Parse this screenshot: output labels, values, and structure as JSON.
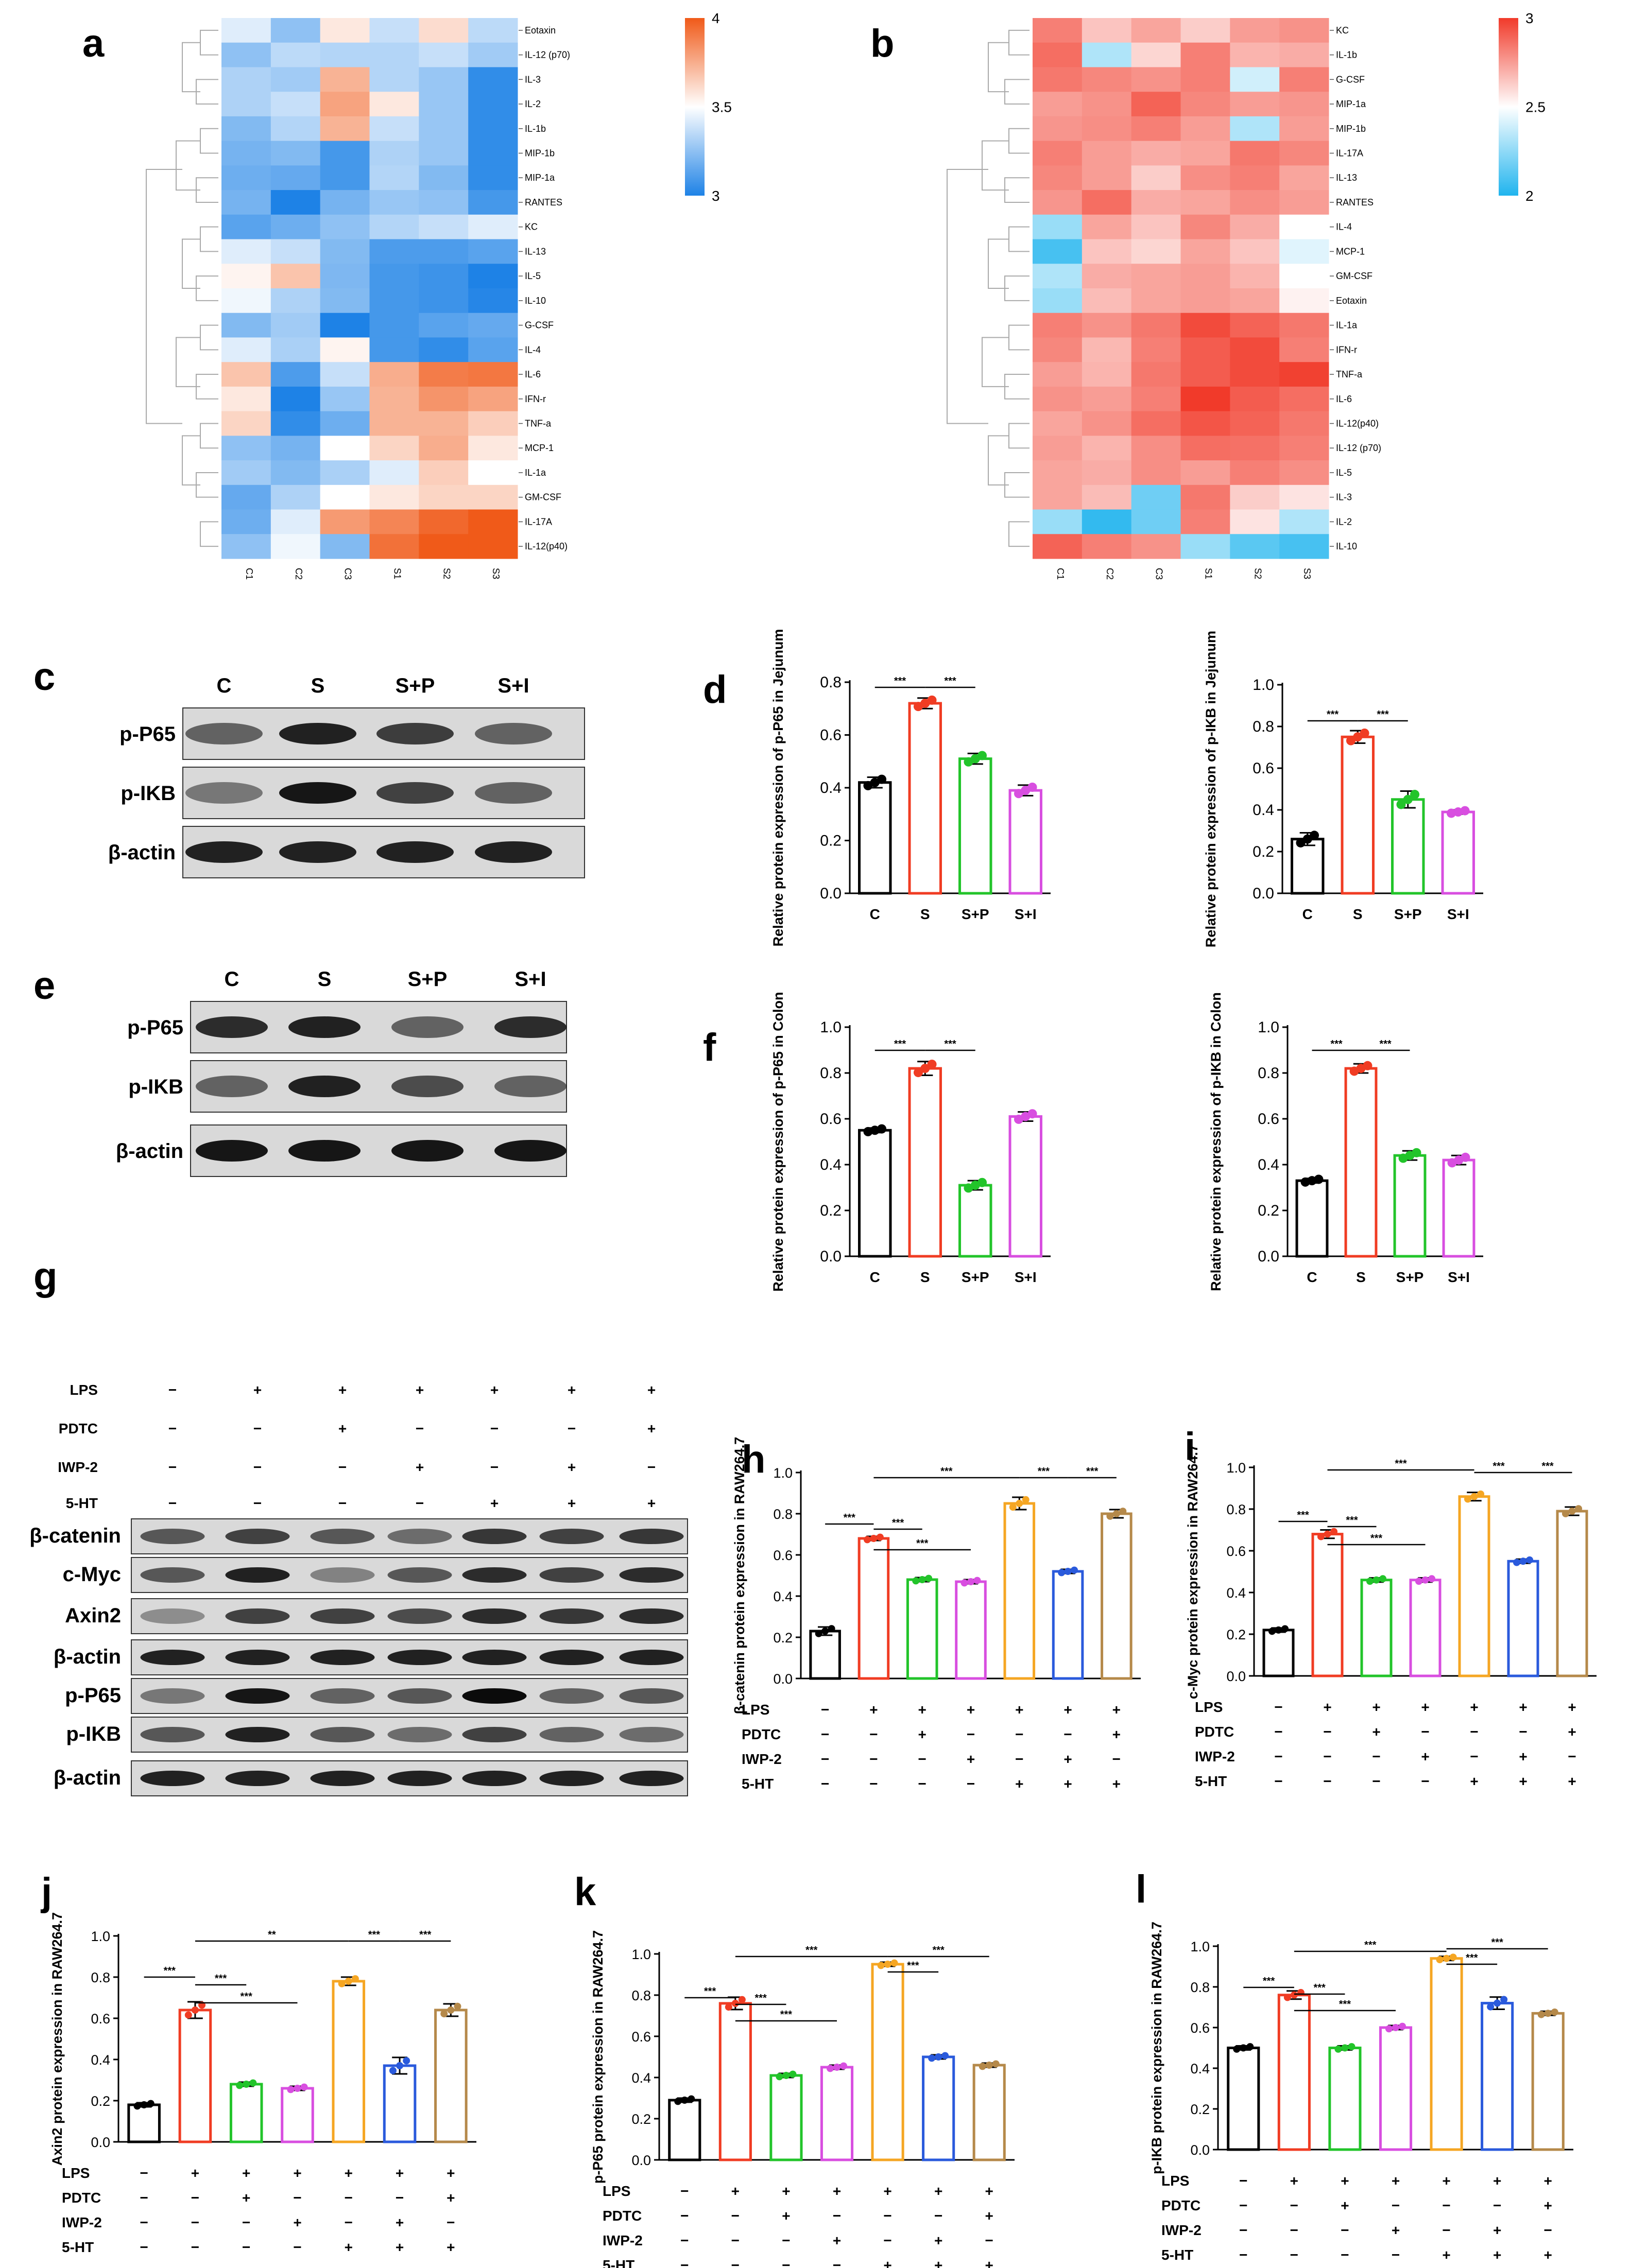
{
  "panel_letters": {
    "a": "a",
    "b": "b",
    "c": "c",
    "d": "d",
    "e": "e",
    "f": "f",
    "g": "g",
    "h": "h",
    "i": "i",
    "j": "j",
    "k": "k",
    "l": "l"
  },
  "chart_data": [
    {
      "id": "a",
      "type": "heatmap",
      "rows": [
        "Eotaxin",
        "IL-12 (p70)",
        "IL-3",
        "IL-2",
        "IL-1b",
        "MIP-1b",
        "MIP-1a",
        "RANTES",
        "KC",
        "IL-13",
        "IL-5",
        "IL-10",
        "G-CSF",
        "IL-4",
        "IL-6",
        "IFN-r",
        "TNF-a",
        "MCP-1",
        "IL-1a",
        "GM-CSF",
        "IL-17A",
        "IL-12(p40)"
      ],
      "cols": [
        "C1",
        "C2",
        "C3",
        "S1",
        "S2",
        "S3"
      ],
      "values": [
        [
          3.45,
          3.28,
          3.55,
          3.4,
          3.58,
          3.38
        ],
        [
          3.28,
          3.38,
          3.36,
          3.36,
          3.4,
          3.32
        ],
        [
          3.35,
          3.32,
          3.7,
          3.36,
          3.3,
          3.05
        ],
        [
          3.35,
          3.4,
          3.75,
          3.55,
          3.3,
          3.05
        ],
        [
          3.25,
          3.36,
          3.7,
          3.4,
          3.3,
          3.05
        ],
        [
          3.22,
          3.25,
          3.1,
          3.35,
          3.3,
          3.05
        ],
        [
          3.2,
          3.18,
          3.1,
          3.36,
          3.25,
          3.05
        ],
        [
          3.22,
          3.0,
          3.22,
          3.3,
          3.28,
          3.1
        ],
        [
          3.15,
          3.2,
          3.28,
          3.36,
          3.4,
          3.45
        ],
        [
          3.45,
          3.4,
          3.25,
          3.12,
          3.12,
          3.15
        ],
        [
          3.52,
          3.65,
          3.24,
          3.1,
          3.08,
          2.9
        ],
        [
          3.48,
          3.35,
          3.25,
          3.1,
          3.08,
          3.02
        ],
        [
          3.25,
          3.32,
          3.0,
          3.1,
          3.15,
          3.18
        ],
        [
          3.45,
          3.34,
          3.52,
          3.1,
          3.05,
          3.15
        ],
        [
          3.65,
          3.12,
          3.4,
          3.72,
          3.88,
          3.9
        ],
        [
          3.55,
          3.0,
          3.3,
          3.7,
          3.8,
          3.75
        ],
        [
          3.6,
          3.05,
          3.2,
          3.7,
          3.7,
          3.62
        ],
        [
          3.28,
          3.22,
          3.5,
          3.6,
          3.72,
          3.55
        ],
        [
          3.32,
          3.25,
          3.34,
          3.45,
          3.62,
          3.5
        ],
        [
          3.18,
          3.35,
          3.5,
          3.55,
          3.6,
          3.6
        ],
        [
          3.2,
          3.45,
          3.78,
          3.85,
          3.95,
          4.0
        ],
        [
          3.28,
          3.48,
          3.25,
          3.92,
          4.0,
          4.0
        ]
      ],
      "colorbar": {
        "ticks": [
          "4",
          "3.5",
          "3"
        ],
        "range": [
          3,
          4
        ]
      },
      "colors": {
        "low": "#1e82e6",
        "mid": "#ffffff",
        "high": "#f05a19"
      }
    },
    {
      "id": "b",
      "type": "heatmap",
      "rows": [
        "KC",
        "IL-1b",
        "G-CSF",
        "MIP-1a",
        "MIP-1b",
        "IL-17A",
        "IL-13",
        "RANTES",
        "IL-4",
        "MCP-1",
        "GM-CSF",
        "Eotaxin",
        "IL-1a",
        "IFN-r",
        "TNF-a",
        "IL-6",
        "IL-12(p40)",
        "IL-12 (p70)",
        "IL-5",
        "IL-3",
        "IL-2",
        "IL-10"
      ],
      "cols": [
        "C1",
        "C2",
        "C3",
        "S1",
        "S2",
        "S3"
      ],
      "values": [
        [
          2.8,
          2.62,
          2.7,
          2.6,
          2.72,
          2.75
        ],
        [
          2.85,
          2.35,
          2.58,
          2.8,
          2.66,
          2.68
        ],
        [
          2.82,
          2.78,
          2.75,
          2.8,
          2.42,
          2.8
        ],
        [
          2.72,
          2.75,
          2.88,
          2.78,
          2.72,
          2.74
        ],
        [
          2.74,
          2.76,
          2.8,
          2.72,
          2.35,
          2.72
        ],
        [
          2.8,
          2.72,
          2.68,
          2.7,
          2.82,
          2.78
        ],
        [
          2.78,
          2.72,
          2.6,
          2.76,
          2.8,
          2.7
        ],
        [
          2.74,
          2.85,
          2.68,
          2.7,
          2.76,
          2.72
        ],
        [
          2.3,
          2.7,
          2.62,
          2.78,
          2.68,
          2.5
        ],
        [
          2.1,
          2.62,
          2.58,
          2.7,
          2.62,
          2.45
        ],
        [
          2.35,
          2.68,
          2.7,
          2.72,
          2.66,
          2.5
        ],
        [
          2.3,
          2.64,
          2.7,
          2.72,
          2.7,
          2.52
        ],
        [
          2.8,
          2.75,
          2.82,
          2.95,
          2.88,
          2.82
        ],
        [
          2.78,
          2.65,
          2.8,
          2.9,
          2.95,
          2.8
        ],
        [
          2.72,
          2.66,
          2.82,
          2.9,
          2.95,
          2.98
        ],
        [
          2.75,
          2.72,
          2.8,
          3.0,
          2.9,
          2.85
        ],
        [
          2.7,
          2.75,
          2.85,
          2.92,
          2.88,
          2.82
        ],
        [
          2.72,
          2.66,
          2.76,
          2.85,
          2.84,
          2.8
        ],
        [
          2.7,
          2.68,
          2.76,
          2.72,
          2.8,
          2.76
        ],
        [
          2.7,
          2.64,
          2.2,
          2.82,
          2.6,
          2.55
        ],
        [
          2.3,
          2.05,
          2.2,
          2.8,
          2.55,
          2.35
        ],
        [
          2.88,
          2.8,
          2.75,
          2.3,
          2.15,
          2.1
        ]
      ],
      "colorbar": {
        "ticks": [
          "3",
          "2.5",
          "2"
        ],
        "range": [
          2,
          3
        ]
      },
      "colors": {
        "low": "#20b4ee",
        "mid": "#ffffff",
        "high": "#f13a2a"
      }
    },
    {
      "id": "d1",
      "type": "bar",
      "ylabel": "Relative protein expression of p-P65 in Jejunum",
      "categories": [
        "C",
        "S",
        "S+P",
        "S+I"
      ],
      "values": [
        0.42,
        0.72,
        0.51,
        0.39
      ],
      "errors": [
        0.02,
        0.02,
        0.02,
        0.02
      ],
      "ylim": [
        0,
        0.8
      ],
      "yticks": [
        "0.0",
        "0.2",
        "0.4",
        "0.6",
        "0.8"
      ],
      "sig": [
        {
          "from": 0,
          "to": 1,
          "label": "***"
        },
        {
          "from": 1,
          "to": 2,
          "label": "***"
        }
      ]
    },
    {
      "id": "d2",
      "type": "bar",
      "ylabel": "Relative protein expression of p-IKB in Jejunum",
      "categories": [
        "C",
        "S",
        "S+P",
        "S+I"
      ],
      "values": [
        0.26,
        0.75,
        0.45,
        0.39
      ],
      "errors": [
        0.03,
        0.03,
        0.04,
        0.01
      ],
      "ylim": [
        0,
        1.0
      ],
      "yticks": [
        "0.0",
        "0.2",
        "0.4",
        "0.6",
        "0.8",
        "1.0"
      ],
      "sig": [
        {
          "from": 0,
          "to": 1,
          "label": "***"
        },
        {
          "from": 1,
          "to": 2,
          "label": "***"
        }
      ]
    },
    {
      "id": "f1",
      "type": "bar",
      "ylabel": "Relative protein expression of p-P65 in Colon",
      "categories": [
        "C",
        "S",
        "S+P",
        "S+I"
      ],
      "values": [
        0.55,
        0.82,
        0.31,
        0.61
      ],
      "errors": [
        0.01,
        0.03,
        0.02,
        0.02
      ],
      "ylim": [
        0,
        1.0
      ],
      "yticks": [
        "0.0",
        "0.2",
        "0.4",
        "0.6",
        "0.8",
        "1.0"
      ],
      "sig": [
        {
          "from": 0,
          "to": 1,
          "label": "***"
        },
        {
          "from": 1,
          "to": 2,
          "label": "***"
        }
      ]
    },
    {
      "id": "f2",
      "type": "bar",
      "ylabel": "Relative protein expression of p-IKB in Colon",
      "categories": [
        "C",
        "S",
        "S+P",
        "S+I"
      ],
      "values": [
        0.33,
        0.82,
        0.44,
        0.42
      ],
      "errors": [
        0.01,
        0.02,
        0.02,
        0.02
      ],
      "ylim": [
        0,
        1.0
      ],
      "yticks": [
        "0.0",
        "0.2",
        "0.4",
        "0.6",
        "0.8",
        "1.0"
      ],
      "sig": [
        {
          "from": 0,
          "to": 1,
          "label": "***"
        },
        {
          "from": 1,
          "to": 2,
          "label": "***"
        }
      ]
    },
    {
      "id": "h",
      "type": "bar",
      "ylabel": "β-catenin protein expression in RAW264.7",
      "values": [
        0.23,
        0.68,
        0.48,
        0.47,
        0.85,
        0.52,
        0.8
      ],
      "errors": [
        0.02,
        0.01,
        0.01,
        0.01,
        0.03,
        0.01,
        0.02
      ],
      "ylim": [
        0,
        1.0
      ],
      "yticks": [
        "0.0",
        "0.2",
        "0.4",
        "0.6",
        "0.8",
        "1.0"
      ],
      "sig": [
        {
          "from": 0,
          "to": 1,
          "label": "***"
        },
        {
          "from": 1,
          "to": 2,
          "label": "***"
        },
        {
          "from": 1,
          "to": 3,
          "label": "***"
        },
        {
          "from": 1,
          "to": 4,
          "label": "***"
        },
        {
          "from": 4,
          "to": 5,
          "label": "***"
        },
        {
          "from": 5,
          "to": 6,
          "label": "***"
        }
      ]
    },
    {
      "id": "i",
      "type": "bar",
      "ylabel": "c-Myc protein expression in RAW264.7",
      "values": [
        0.22,
        0.68,
        0.46,
        0.46,
        0.86,
        0.55,
        0.79
      ],
      "errors": [
        0.01,
        0.02,
        0.01,
        0.01,
        0.02,
        0.01,
        0.02
      ],
      "ylim": [
        0,
        1.0
      ],
      "yticks": [
        "0.0",
        "0.2",
        "0.4",
        "0.6",
        "0.8",
        "1.0"
      ],
      "sig": [
        {
          "from": 0,
          "to": 1,
          "label": "***"
        },
        {
          "from": 1,
          "to": 2,
          "label": "***"
        },
        {
          "from": 1,
          "to": 3,
          "label": "***"
        },
        {
          "from": 1,
          "to": 4,
          "label": "***"
        },
        {
          "from": 4,
          "to": 5,
          "label": "***"
        },
        {
          "from": 5,
          "to": 6,
          "label": "***"
        }
      ]
    },
    {
      "id": "j",
      "type": "bar",
      "ylabel": "Axin2 protein expression in RAW264.7",
      "values": [
        0.18,
        0.64,
        0.28,
        0.26,
        0.78,
        0.37,
        0.64
      ],
      "errors": [
        0.01,
        0.04,
        0.01,
        0.01,
        0.02,
        0.04,
        0.03
      ],
      "ylim": [
        0,
        1.0
      ],
      "yticks": [
        "0.0",
        "0.2",
        "0.4",
        "0.6",
        "0.8",
        "1.0"
      ],
      "sig": [
        {
          "from": 0,
          "to": 1,
          "label": "***"
        },
        {
          "from": 1,
          "to": 2,
          "label": "***"
        },
        {
          "from": 1,
          "to": 3,
          "label": "***"
        },
        {
          "from": 1,
          "to": 4,
          "label": "**"
        },
        {
          "from": 4,
          "to": 5,
          "label": "***"
        },
        {
          "from": 5,
          "to": 6,
          "label": "***"
        }
      ]
    },
    {
      "id": "k",
      "type": "bar",
      "ylabel": "p-P65 protein expression in RAW264.7",
      "values": [
        0.29,
        0.76,
        0.41,
        0.45,
        0.95,
        0.5,
        0.46
      ],
      "errors": [
        0.01,
        0.03,
        0.01,
        0.01,
        0.01,
        0.01,
        0.01
      ],
      "ylim": [
        0,
        1.0
      ],
      "yticks": [
        "0.0",
        "0.2",
        "0.4",
        "0.6",
        "0.8",
        "1.0"
      ],
      "sig": [
        {
          "from": 0,
          "to": 1,
          "label": "***"
        },
        {
          "from": 1,
          "to": 2,
          "label": "***"
        },
        {
          "from": 1,
          "to": 3,
          "label": "***"
        },
        {
          "from": 1,
          "to": 4,
          "label": "***"
        },
        {
          "from": 4,
          "to": 5,
          "label": "***"
        },
        {
          "from": 4,
          "to": 6,
          "label": "***"
        }
      ]
    },
    {
      "id": "l",
      "type": "bar",
      "ylabel": "p-IKB protein expression in RAW264.7",
      "values": [
        0.5,
        0.76,
        0.5,
        0.6,
        0.94,
        0.72,
        0.67
      ],
      "errors": [
        0.01,
        0.02,
        0.01,
        0.01,
        0.01,
        0.03,
        0.01
      ],
      "ylim": [
        0,
        1.0
      ],
      "yticks": [
        "0.0",
        "0.2",
        "0.4",
        "0.6",
        "0.8",
        "1.0"
      ],
      "sig": [
        {
          "from": 0,
          "to": 1,
          "label": "***"
        },
        {
          "from": 1,
          "to": 2,
          "label": "***"
        },
        {
          "from": 1,
          "to": 3,
          "label": "***"
        },
        {
          "from": 1,
          "to": 4,
          "label": "***"
        },
        {
          "from": 4,
          "to": 5,
          "label": "***"
        },
        {
          "from": 4,
          "to": 6,
          "label": "***"
        }
      ]
    }
  ],
  "treatment_table": {
    "rows": [
      "LPS",
      "PDTC",
      "IWP-2",
      "5-HT"
    ],
    "cells": [
      [
        "−",
        "+",
        "+",
        "+",
        "+",
        "+",
        "+"
      ],
      [
        "−",
        "−",
        "+",
        "−",
        "−",
        "−",
        "+"
      ],
      [
        "−",
        "−",
        "−",
        "+",
        "−",
        "+",
        "−"
      ],
      [
        "−",
        "−",
        "−",
        "−",
        "+",
        "+",
        "+"
      ]
    ]
  },
  "bar_colors_4": [
    "#000000",
    "#f03c23",
    "#22c42a",
    "#d84ee0"
  ],
  "bar_colors_7": [
    "#000000",
    "#f03c23",
    "#22c42a",
    "#d84ee0",
    "#f5a623",
    "#2a5adc",
    "#b5894a"
  ],
  "blot_c": {
    "lanes": [
      "C",
      "S",
      "S+P",
      "S+I"
    ],
    "bands": [
      "p-P65",
      "p-IKB",
      "β-actin"
    ]
  },
  "blot_e": {
    "lanes": [
      "C",
      "S",
      "S+P",
      "S+I"
    ],
    "bands": [
      "p-P65",
      "p-IKB",
      "β-actin"
    ]
  },
  "blot_g": {
    "bands": [
      "β-catenin",
      "c-Myc",
      "Axin2",
      "β-actin",
      "p-P65",
      "p-IKB",
      "β-actin"
    ]
  }
}
